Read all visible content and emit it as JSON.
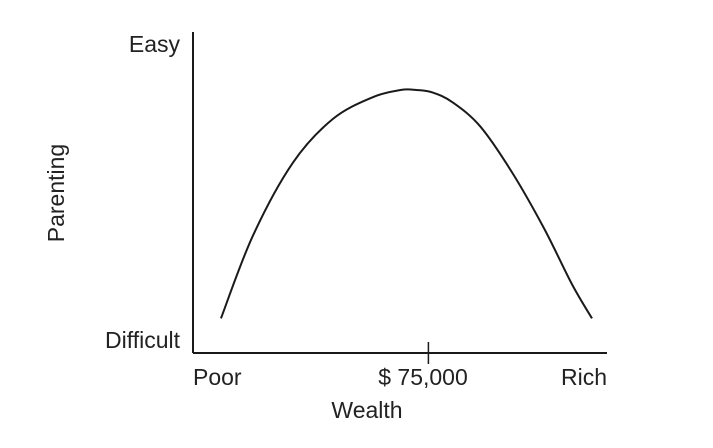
{
  "chart_data": {
    "type": "line",
    "title": "",
    "xlabel": "Wealth",
    "ylabel": "Parenting",
    "x_tick_labels": {
      "left": "Poor",
      "middle": "$ 75,000",
      "right": "Rich"
    },
    "y_tick_labels": {
      "top": "Easy",
      "bottom": "Difficult"
    },
    "grid": false,
    "legend": "none",
    "xlim": [
      0,
      1
    ],
    "ylim": [
      0,
      1
    ],
    "x_marker_value": 0.59,
    "series": [
      {
        "x": [
          0.07,
          0.15,
          0.25,
          0.35,
          0.45,
          0.52,
          0.56,
          0.6,
          0.65,
          0.72,
          0.8,
          0.88,
          0.95,
          1.0
        ],
        "values": [
          0.06,
          0.4,
          0.7,
          0.88,
          0.97,
          1.0,
          1.0,
          0.99,
          0.95,
          0.85,
          0.66,
          0.43,
          0.2,
          0.06
        ]
      }
    ],
    "colors": {
      "line": "#1a1a1a",
      "axis": "#1a1a1a",
      "text": "#222222",
      "background": "#ffffff"
    }
  }
}
